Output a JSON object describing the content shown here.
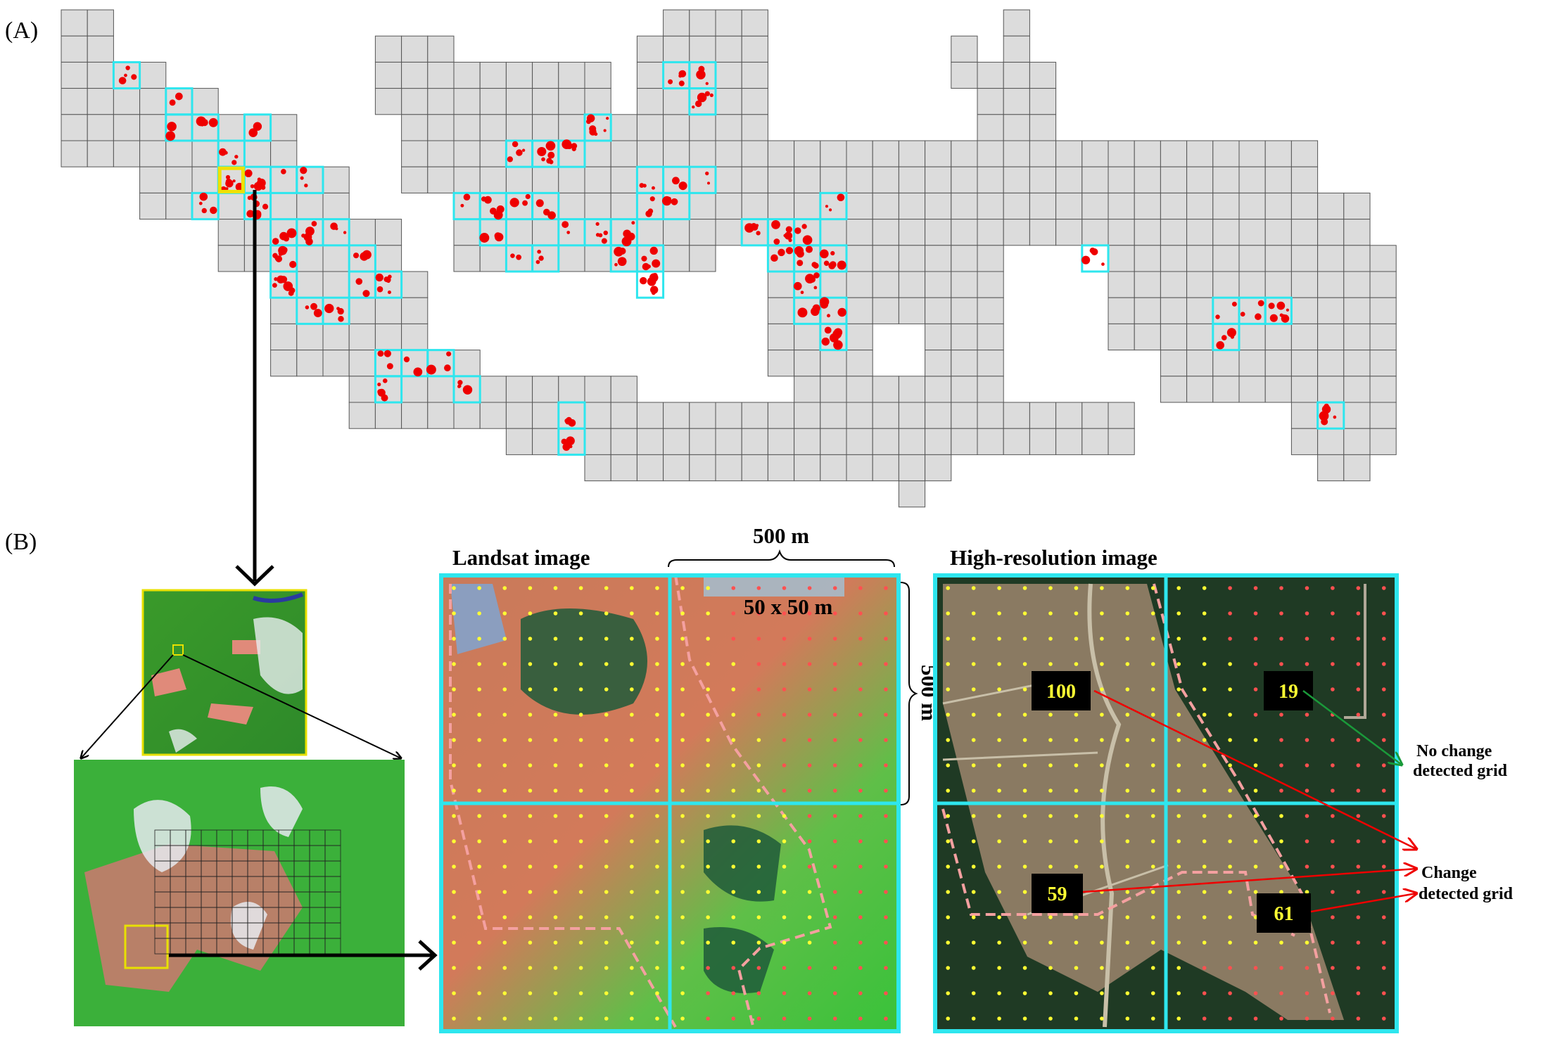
{
  "panel_a": {
    "label": "(A)"
  },
  "panel_b": {
    "label": "(B)",
    "landsat": {
      "title": "Landsat image",
      "width_label": "500 m",
      "height_label": "500 m",
      "cell_label": "50 x 50 m"
    },
    "high_res": {
      "title": "High-resolution image",
      "counts": [
        100,
        19,
        59,
        61
      ],
      "no_change_label": [
        "No change",
        "detected grid"
      ],
      "change_label": [
        "Change",
        "detected grid"
      ]
    }
  }
}
